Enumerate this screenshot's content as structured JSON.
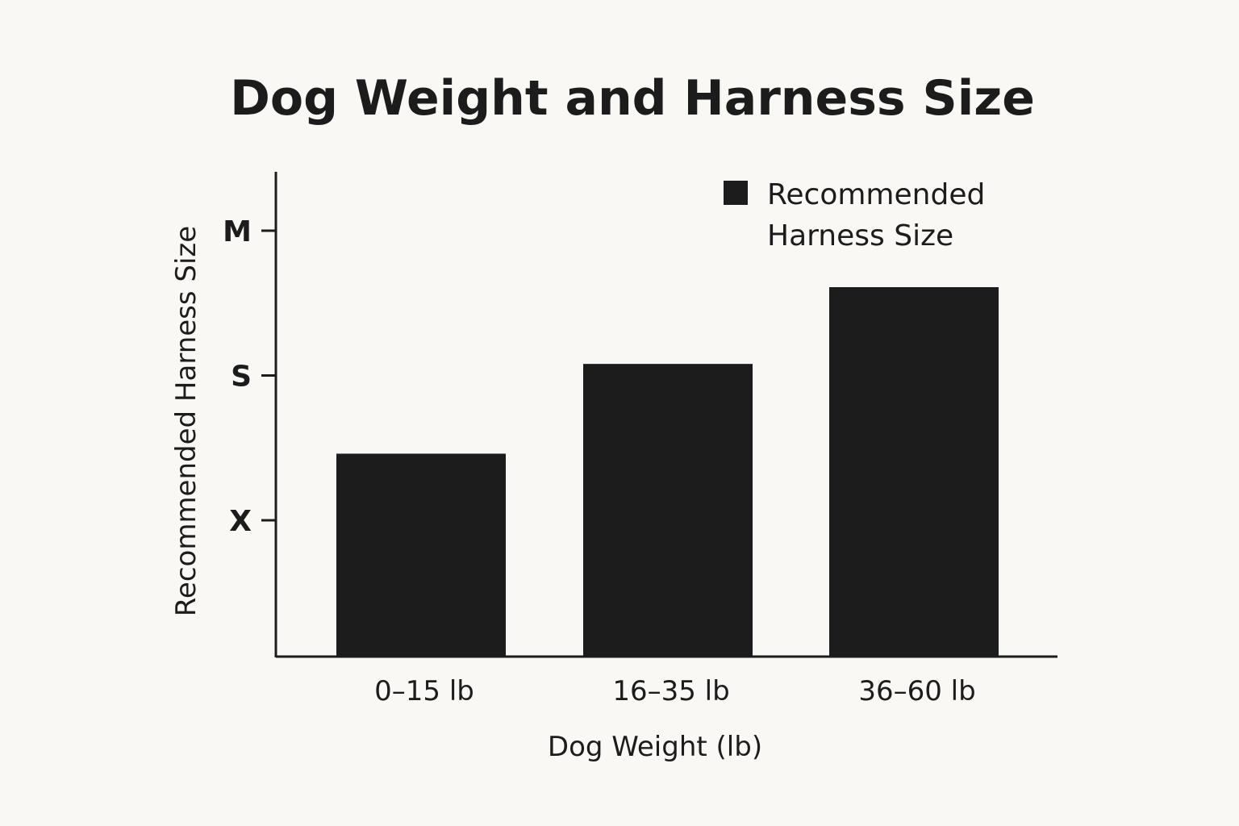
{
  "chart_data": {
    "type": "bar",
    "title": "Dog Weight and Harness Size",
    "xlabel": "Dog Weight (lb)",
    "ylabel": "Recommended Harness Size",
    "categories": [
      "0–15 lb",
      "16–35 lb",
      "36–60 lb"
    ],
    "y_ticks": [
      {
        "label": "X",
        "value": 1
      },
      {
        "label": "S",
        "value": 2
      },
      {
        "label": "M",
        "value": 3
      }
    ],
    "ylim": [
      -0.0,
      3.4
    ],
    "series": [
      {
        "name": "Recommended Harness Size",
        "values": [
          1.46,
          2.08,
          2.61
        ],
        "color": "#1c1c1c"
      }
    ],
    "legend": {
      "position": "top-right",
      "lines": [
        "Recommended",
        "Harness Size"
      ]
    },
    "grid": false,
    "background": "#f9f8f5",
    "bar_color": "#1c1c1c"
  }
}
